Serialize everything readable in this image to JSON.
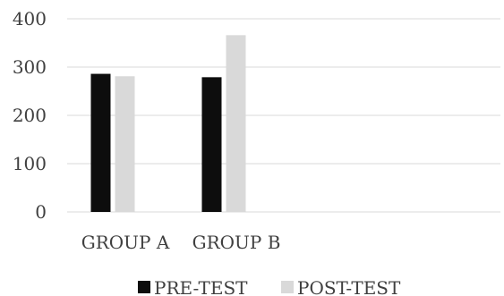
{
  "chart_data": {
    "type": "bar",
    "categories": [
      "GROUP A",
      "GROUP B"
    ],
    "series": [
      {
        "name": "PRE-TEST",
        "values": [
          286,
          279
        ],
        "color": "#0d0d0d"
      },
      {
        "name": "POST-TEST",
        "values": [
          281,
          366
        ],
        "color": "#d9d9d9"
      }
    ],
    "y_ticks": [
      "0",
      "100",
      "200",
      "300",
      "400"
    ],
    "ylim": [
      0,
      400
    ],
    "grid": true,
    "legend_position": "bottom",
    "title": "",
    "xlabel": "",
    "ylabel": ""
  }
}
